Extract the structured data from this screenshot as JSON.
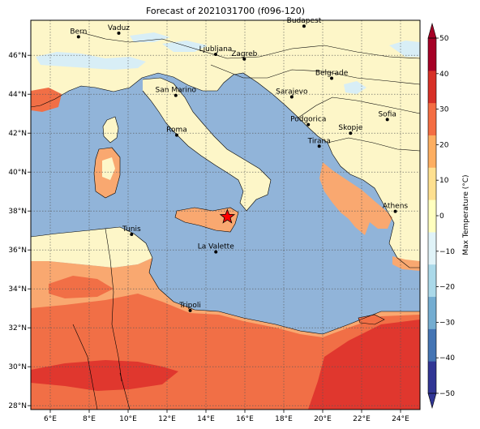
{
  "title": "Forecast of 2021031700 (f096-120)",
  "map": {
    "lon_range": [
      5,
      25
    ],
    "lat_range": [
      27.8,
      47.8
    ],
    "lon_ticks": [
      "6°E",
      "8°E",
      "10°E",
      "12°E",
      "14°E",
      "16°E",
      "18°E",
      "20°E",
      "22°E",
      "24°E"
    ],
    "lat_ticks": [
      "28°N",
      "30°N",
      "32°N",
      "34°N",
      "36°N",
      "38°N",
      "40°N",
      "42°N",
      "44°N",
      "46°N"
    ],
    "grid": true,
    "marker": {
      "name": "star",
      "lon": 15.1,
      "lat": 37.7,
      "color": "#ff0000"
    }
  },
  "cities": [
    {
      "name": "Bern",
      "lon": 7.45,
      "lat": 46.95
    },
    {
      "name": "Vaduz",
      "lon": 9.52,
      "lat": 47.14
    },
    {
      "name": "Budapest",
      "lon": 19.04,
      "lat": 47.5
    },
    {
      "name": "Ljubljana",
      "lon": 14.5,
      "lat": 46.05
    },
    {
      "name": "Zagreb",
      "lon": 15.97,
      "lat": 45.81
    },
    {
      "name": "Belgrade",
      "lon": 20.46,
      "lat": 44.82
    },
    {
      "name": "San Marino",
      "lon": 12.45,
      "lat": 43.94
    },
    {
      "name": "Sarajevo",
      "lon": 18.41,
      "lat": 43.86
    },
    {
      "name": "Sofia",
      "lon": 23.32,
      "lat": 42.7
    },
    {
      "name": "Roma",
      "lon": 12.5,
      "lat": 41.9
    },
    {
      "name": "Podgorica",
      "lon": 19.26,
      "lat": 42.44
    },
    {
      "name": "Skopje",
      "lon": 21.43,
      "lat": 42.0
    },
    {
      "name": "Tirana",
      "lon": 19.82,
      "lat": 41.33
    },
    {
      "name": "Athens",
      "lon": 23.73,
      "lat": 37.98
    },
    {
      "name": "Tunis",
      "lon": 10.18,
      "lat": 36.8
    },
    {
      "name": "La Valette",
      "lon": 14.51,
      "lat": 35.9
    },
    {
      "name": "Tripoli",
      "lon": 13.19,
      "lat": 32.89
    }
  ],
  "colorbar": {
    "label": "Max Temperature (°C)",
    "ticks": [
      "50",
      "40",
      "30",
      "20",
      "10",
      "0",
      "−10",
      "−20",
      "−30",
      "−40",
      "−50"
    ],
    "range": [
      -50,
      50
    ],
    "colors": [
      "#313695",
      "#4575b4",
      "#74add1",
      "#abd9e9",
      "#e0f3f8",
      "#ffffbf",
      "#fee090",
      "#fdae61",
      "#f46d43",
      "#d73027",
      "#a50026"
    ]
  }
}
